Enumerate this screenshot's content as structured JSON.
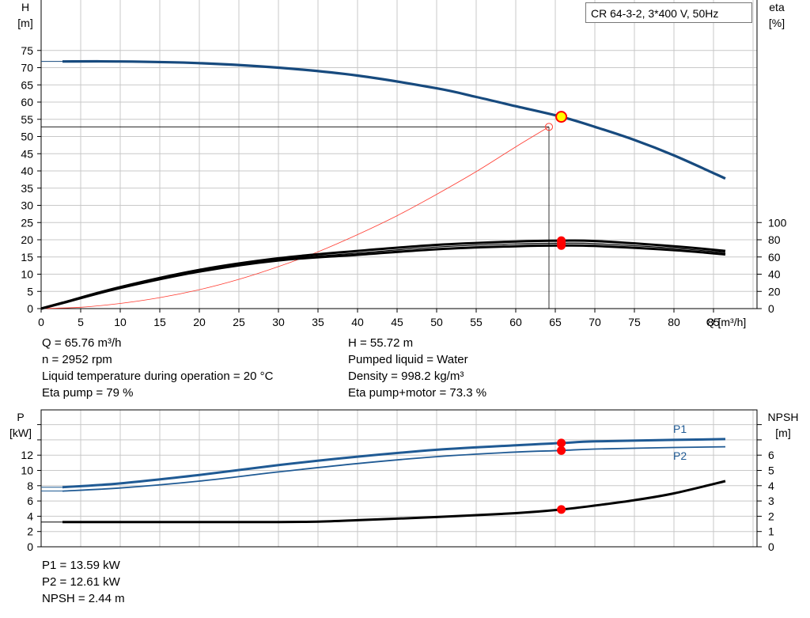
{
  "title_box": "CR 64-3-2, 3*400 V, 50Hz",
  "colors": {
    "head": "#174a7e",
    "power": "#1f5a94",
    "eff": "#000000",
    "system": "#ff3b30",
    "dot": "#ff0000",
    "op_fill": "#ffff00",
    "grid": "#c8c8c8"
  },
  "chart_data": [
    {
      "type": "line",
      "name": "head-and-efficiency",
      "xlabel": "Q [m³/h]",
      "ylabel_left": "H",
      "ylabel_left_unit": "[m]",
      "ylabel_right": "eta",
      "ylabel_right_unit": "[%]",
      "x_ticks": [
        0,
        5,
        10,
        15,
        20,
        25,
        30,
        35,
        40,
        45,
        50,
        55,
        60,
        65,
        70,
        75,
        80,
        85
      ],
      "y_left_ticks": [
        0,
        5,
        10,
        15,
        20,
        25,
        30,
        35,
        40,
        45,
        50,
        55,
        60,
        65,
        70,
        75
      ],
      "y_right_ticks": [
        0,
        20,
        40,
        60,
        80,
        100
      ],
      "xlim": [
        0,
        86.5
      ],
      "ylim_left": [
        0,
        75
      ],
      "eta_scale": "100 % = 25 m on left axis",
      "grid": true,
      "series": [
        {
          "key": "head",
          "axis": "left",
          "x": [
            0,
            2.7,
            10,
            20,
            30,
            40,
            50,
            55,
            60,
            65.76,
            70,
            75,
            80,
            86.5
          ],
          "y": [
            71.8,
            71.8,
            71.8,
            71.3,
            70,
            67.7,
            64,
            61.5,
            58.8,
            55.72,
            52.8,
            49,
            44.5,
            37.8
          ]
        },
        {
          "key": "eta_pump",
          "axis": "right",
          "x": [
            0,
            2.7,
            10,
            20,
            30,
            40,
            50,
            60,
            65.76,
            70,
            80,
            86.5
          ],
          "y": [
            0,
            6.8,
            25,
            45,
            58.5,
            67,
            74,
            78,
            79,
            78.5,
            72.5,
            67
          ]
        },
        {
          "key": "eta_pump_motor",
          "axis": "right",
          "x": [
            0,
            2.7,
            10,
            20,
            30,
            40,
            50,
            60,
            65.76,
            70,
            80,
            86.5
          ],
          "y": [
            0,
            6.4,
            24,
            43,
            56,
            62.5,
            69,
            72.5,
            73.3,
            72.8,
            68,
            63
          ]
        },
        {
          "key": "eta_thin",
          "axis": "right",
          "x": [
            0,
            2.7,
            10,
            20,
            30,
            40,
            50,
            60,
            65.76,
            70,
            80,
            86.5
          ],
          "y": [
            0,
            6.6,
            24.5,
            44,
            57.2,
            64.5,
            71.5,
            75.2,
            76,
            75.5,
            70.2,
            65
          ]
        },
        {
          "key": "system",
          "axis": "left",
          "x": [
            0,
            5,
            10,
            15,
            20,
            25,
            30,
            35,
            40,
            45,
            50,
            55,
            60,
            64.2
          ],
          "y": [
            0,
            0.4,
            1.5,
            3.2,
            5.5,
            8.5,
            12.2,
            16.5,
            21.5,
            27,
            33.2,
            39.8,
            47,
            52.8
          ]
        }
      ],
      "operating_point": {
        "x": 65.76,
        "y": 55.72
      },
      "requested_point": {
        "x": 64.2,
        "y": 52.8
      },
      "eta_points": [
        79,
        73.3,
        76
      ]
    },
    {
      "type": "line",
      "name": "power-and-npsh",
      "ylabel_left": "P",
      "ylabel_left_unit": "[kW]",
      "ylabel_right": "NPSH",
      "ylabel_right_unit": "[m]",
      "y_left_ticks": [
        0,
        2,
        4,
        6,
        8,
        10,
        12
      ],
      "y_right_ticks": [
        0,
        1,
        2,
        3,
        4,
        5,
        6
      ],
      "ylim_left": [
        0,
        16
      ],
      "grid": true,
      "series": [
        {
          "key": "P1",
          "name": "P1",
          "axis": "left",
          "x": [
            0,
            2.7,
            10,
            20,
            30,
            40,
            50,
            60,
            65.76,
            70,
            80,
            86.5
          ],
          "y": [
            7.8,
            7.8,
            8.3,
            9.4,
            10.7,
            11.8,
            12.7,
            13.3,
            13.59,
            13.8,
            14.0,
            14.1
          ]
        },
        {
          "key": "P2",
          "name": "P2",
          "axis": "left",
          "x": [
            0,
            2.7,
            10,
            20,
            30,
            40,
            50,
            60,
            65.76,
            70,
            80,
            86.5
          ],
          "y": [
            7.3,
            7.3,
            7.7,
            8.6,
            9.8,
            10.9,
            11.8,
            12.4,
            12.61,
            12.8,
            13.0,
            13.1
          ]
        },
        {
          "key": "NPSH",
          "axis": "right",
          "x": [
            0,
            2.7,
            10,
            20,
            30,
            35,
            40,
            50,
            60,
            65.76,
            70,
            75,
            80,
            86.5
          ],
          "y": [
            1.62,
            1.62,
            1.62,
            1.62,
            1.62,
            1.65,
            1.74,
            1.95,
            2.2,
            2.44,
            2.7,
            3.05,
            3.5,
            4.3
          ]
        }
      ],
      "op_points": {
        "P1": 13.59,
        "P2": 12.61,
        "NPSH": 2.44,
        "x": 65.76
      }
    }
  ],
  "info_top_left": [
    "Q = 65.76 m³/h",
    "n = 2952 rpm",
    "Liquid temperature during operation = 20 °C",
    "Eta pump = 79 %"
  ],
  "info_top_right": [
    "H = 55.72 m",
    "Pumped liquid = Water",
    "Density = 998.2 kg/m³",
    "Eta pump+motor = 73.3 %"
  ],
  "info_bottom": [
    "P1 = 13.59 kW",
    "P2 = 12.61 kW",
    "NPSH = 2.44 m"
  ]
}
